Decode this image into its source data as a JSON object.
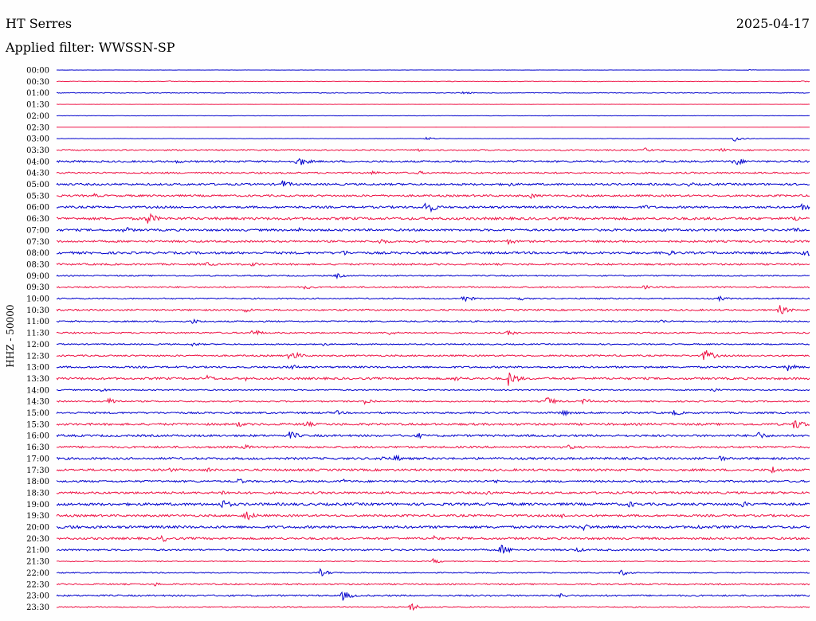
{
  "header": {
    "station": "HT Serres",
    "date": "2025-04-17",
    "filter": "Applied filter: WWSSN-SP"
  },
  "chart_data": {
    "type": "line",
    "title": "HT Serres",
    "subtitle": "Applied filter: WWSSN-SP",
    "ylabel": "HHZ - 50000",
    "xlabel": "",
    "grid": false,
    "legend": "none",
    "trace_colors": [
      "#0000cc",
      "#ee1144"
    ],
    "rows": [
      "00:00",
      "00:30",
      "01:00",
      "01:30",
      "02:00",
      "02:30",
      "03:00",
      "03:30",
      "04:00",
      "04:30",
      "05:00",
      "05:30",
      "06:00",
      "06:30",
      "07:00",
      "07:30",
      "08:00",
      "08:30",
      "09:00",
      "09:30",
      "10:00",
      "10:30",
      "11:00",
      "11:30",
      "12:00",
      "12:30",
      "13:00",
      "13:30",
      "14:00",
      "14:30",
      "15:00",
      "15:30",
      "16:00",
      "16:30",
      "17:00",
      "17:30",
      "18:00",
      "18:30",
      "19:00",
      "19:30",
      "20:00",
      "20:30",
      "21:00",
      "21:30",
      "22:00",
      "22:30",
      "23:00",
      "23:30"
    ],
    "noise_level": [
      0.05,
      0.15,
      0.2,
      0.05,
      0.1,
      0.05,
      0.1,
      0.35,
      0.5,
      0.45,
      0.55,
      0.55,
      0.6,
      0.7,
      0.6,
      0.55,
      0.65,
      0.5,
      0.35,
      0.4,
      0.35,
      0.45,
      0.4,
      0.4,
      0.35,
      0.45,
      0.5,
      0.6,
      0.35,
      0.4,
      0.5,
      0.6,
      0.6,
      0.55,
      0.6,
      0.6,
      0.55,
      0.6,
      0.7,
      0.6,
      0.7,
      0.6,
      0.5,
      0.25,
      0.3,
      0.4,
      0.45,
      0.3
    ],
    "events": [
      [
        [
          0.92,
          0.25
        ]
      ],
      [
        [
          0.15,
          0.5
        ],
        [
          0.52,
          0.4
        ],
        [
          0.99,
          0.5
        ]
      ],
      [
        [
          0.54,
          0.9
        ],
        [
          0.59,
          0.5
        ]
      ],
      [],
      [
        [
          0.65,
          0.3
        ]
      ],
      [],
      [
        [
          0.49,
          1.0
        ],
        [
          0.9,
          1.8
        ]
      ],
      [
        [
          0.48,
          1.0
        ],
        [
          0.78,
          1.4
        ],
        [
          0.88,
          1.3
        ]
      ],
      [
        [
          0.32,
          3.5
        ],
        [
          0.16,
          1.2
        ],
        [
          0.9,
          3.0
        ]
      ],
      [
        [
          0.42,
          1.4
        ],
        [
          0.48,
          1.2
        ]
      ],
      [
        [
          0.3,
          2.5
        ],
        [
          0.6,
          1.3
        ],
        [
          0.84,
          1.3
        ]
      ],
      [
        [
          0.63,
          1.6
        ],
        [
          0.05,
          1.2
        ]
      ],
      [
        [
          0.49,
          4.5
        ],
        [
          0.78,
          1.5
        ],
        [
          0.99,
          2.0
        ]
      ],
      [
        [
          0.12,
          4.0
        ],
        [
          0.98,
          1.8
        ]
      ],
      [
        [
          0.09,
          2.2
        ],
        [
          0.32,
          1.5
        ],
        [
          0.8,
          1.4
        ],
        [
          0.98,
          1.8
        ]
      ],
      [
        [
          0.43,
          2.0
        ],
        [
          0.6,
          1.8
        ],
        [
          0.75,
          1.2
        ]
      ],
      [
        [
          0.38,
          1.8
        ],
        [
          0.81,
          2.0
        ],
        [
          0.99,
          3.0
        ]
      ],
      [
        [
          0.2,
          1.5
        ],
        [
          0.26,
          1.4
        ]
      ],
      [
        [
          0.37,
          1.6
        ]
      ],
      [
        [
          0.33,
          1.5
        ],
        [
          0.78,
          1.2
        ]
      ],
      [
        [
          0.54,
          2.2
        ],
        [
          0.61,
          1.8
        ],
        [
          0.88,
          1.5
        ]
      ],
      [
        [
          0.25,
          1.5
        ],
        [
          0.96,
          3.0
        ]
      ],
      [
        [
          0.18,
          1.6
        ],
        [
          0.8,
          1.4
        ]
      ],
      [
        [
          0.26,
          2.2
        ],
        [
          0.44,
          1.5
        ],
        [
          0.6,
          1.6
        ]
      ],
      [
        [
          0.18,
          1.3
        ],
        [
          0.35,
          1.3
        ]
      ],
      [
        [
          0.31,
          3.5
        ],
        [
          0.86,
          4.0
        ]
      ],
      [
        [
          0.31,
          2.0
        ],
        [
          0.78,
          1.4
        ],
        [
          0.97,
          2.5
        ]
      ],
      [
        [
          0.2,
          2.0
        ],
        [
          0.25,
          1.4
        ],
        [
          0.53,
          1.8
        ],
        [
          0.6,
          4.5
        ]
      ],
      [
        [
          0.06,
          1.2
        ],
        [
          0.87,
          1.3
        ]
      ],
      [
        [
          0.07,
          2.5
        ],
        [
          0.41,
          2.0
        ],
        [
          0.65,
          3.0
        ],
        [
          0.7,
          2.0
        ]
      ],
      [
        [
          0.37,
          1.6
        ],
        [
          0.67,
          2.2
        ],
        [
          0.82,
          1.8
        ]
      ],
      [
        [
          0.24,
          1.8
        ],
        [
          0.33,
          2.0
        ],
        [
          0.98,
          3.5
        ]
      ],
      [
        [
          0.31,
          2.8
        ],
        [
          0.48,
          1.8
        ],
        [
          0.93,
          2.8
        ]
      ],
      [
        [
          0.25,
          1.6
        ],
        [
          0.68,
          1.5
        ]
      ],
      [
        [
          0.43,
          2.0
        ],
        [
          0.45,
          2.2
        ],
        [
          0.88,
          1.8
        ]
      ],
      [
        [
          0.15,
          1.3
        ],
        [
          0.2,
          1.6
        ],
        [
          0.95,
          2.5
        ]
      ],
      [
        [
          0.24,
          2.0
        ],
        [
          0.38,
          1.5
        ],
        [
          0.58,
          1.4
        ]
      ],
      [
        [
          0.22,
          1.8
        ],
        [
          0.57,
          1.6
        ]
      ],
      [
        [
          0.22,
          3.0
        ],
        [
          0.76,
          2.0
        ],
        [
          0.91,
          2.0
        ]
      ],
      [
        [
          0.25,
          3.5
        ],
        [
          0.67,
          1.5
        ]
      ],
      [
        [
          0.7,
          2.2
        ],
        [
          0.85,
          1.6
        ],
        [
          0.02,
          1.6
        ]
      ],
      [
        [
          0.14,
          2.2
        ],
        [
          0.5,
          1.8
        ]
      ],
      [
        [
          0.59,
          3.2
        ],
        [
          0.69,
          1.6
        ]
      ],
      [
        [
          0.5,
          1.5
        ]
      ],
      [
        [
          0.35,
          2.2
        ],
        [
          0.75,
          1.8
        ]
      ],
      [
        [
          0.13,
          1.2
        ]
      ],
      [
        [
          0.38,
          3.0
        ],
        [
          0.67,
          1.6
        ]
      ],
      [
        [
          0.47,
          2.5
        ]
      ]
    ]
  }
}
